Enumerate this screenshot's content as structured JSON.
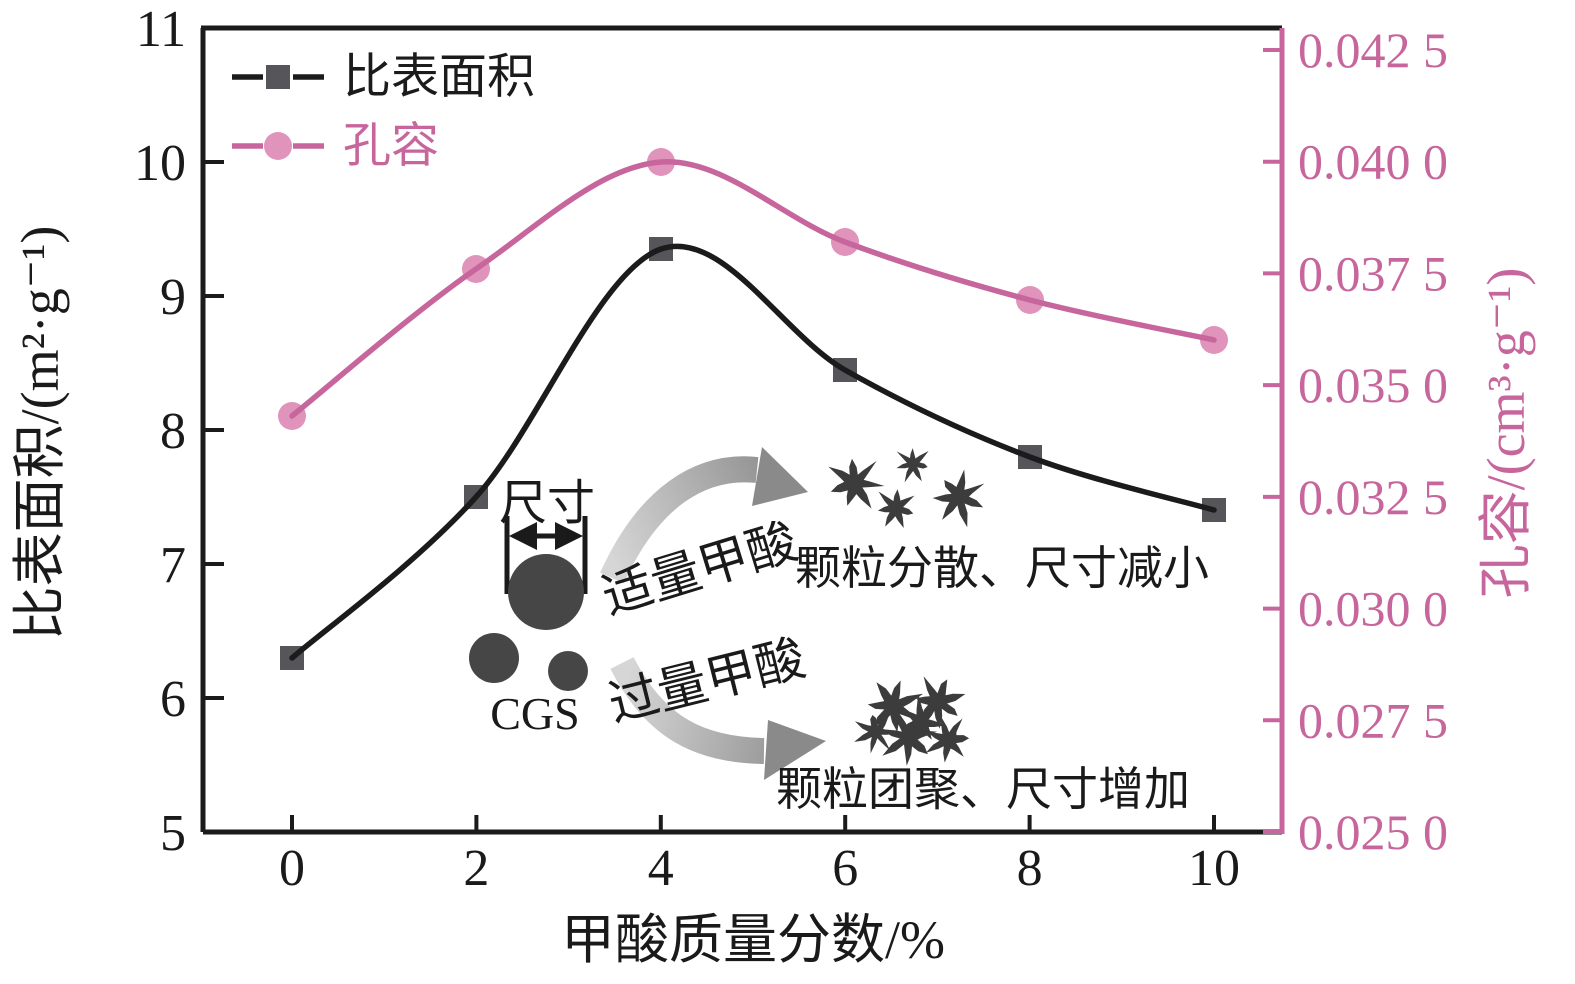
{
  "chart_data": {
    "type": "line",
    "x": [
      0,
      2,
      4,
      6,
      8,
      10
    ],
    "series": [
      {
        "name": "比表面积",
        "axis": "left",
        "values": [
          6.3,
          7.5,
          9.35,
          8.45,
          7.8,
          7.4
        ],
        "color": "#1b1b1b",
        "marker": "square",
        "marker_color": "#55555a"
      },
      {
        "name": "孔容",
        "axis": "right",
        "values": [
          0.0343,
          0.0376,
          0.04,
          0.0382,
          0.0369,
          0.036
        ],
        "color": "#c7669c",
        "marker": "circle",
        "marker_color": "#e093bb"
      }
    ],
    "title": "",
    "xlabel": "甲酸质量分数/%",
    "ylabel_left": "比表面积/(m²·g⁻¹)",
    "ylabel_right": "孔容/(cm³·g⁻¹)",
    "xlim": [
      -1,
      10.8
    ],
    "ylim_left": [
      5,
      11
    ],
    "ylim_right": [
      0.025,
      0.0425
    ],
    "x_ticks": [
      0,
      2,
      4,
      6,
      8,
      10
    ],
    "x_tick_labels": [
      "0",
      "2",
      "4",
      "6",
      "8",
      "10"
    ],
    "y_left_ticks": [
      5,
      6,
      7,
      8,
      9,
      10,
      11
    ],
    "y_left_tick_labels": [
      "5",
      "6",
      "7",
      "8",
      "9",
      "10",
      "11"
    ],
    "y_right_tick_values": [
      0.0425,
      0.04,
      0.0375,
      0.035,
      0.0325,
      0.03,
      0.0275,
      0.025
    ],
    "y_right_tick_labels": [
      "0.042 5",
      "0.040 0",
      "0.037 5",
      "0.035 0",
      "0.032 5",
      "0.030 0",
      "0.027 5",
      "0.025 0"
    ],
    "grid": false,
    "legend_position": "top-left",
    "smoothing": "spline"
  },
  "legend": {
    "items": [
      {
        "label": "比表面积"
      },
      {
        "label": "孔容"
      }
    ]
  },
  "annotations": {
    "size_label": "尺寸",
    "cgs_label": "CGS",
    "moderate_acid_label": "适量甲酸",
    "excess_acid_label": "过量甲酸",
    "dispersed_label": "颗粒分散、尺寸减小",
    "agglomerated_label": "颗粒团聚、尺寸增加"
  },
  "colors": {
    "text": "#1a1a1a",
    "axis": "#1b1b1b",
    "surface_line": "#1b1b1b",
    "surface_marker": "#55555a",
    "pore_line": "#c7669c",
    "pore_marker": "#e093bb",
    "arrow_light": "#d6d6d6",
    "arrow_dark": "#8a8a8a",
    "particle": "#3c3c3c",
    "particle_circle": "#464646",
    "background": "#ffffff"
  }
}
